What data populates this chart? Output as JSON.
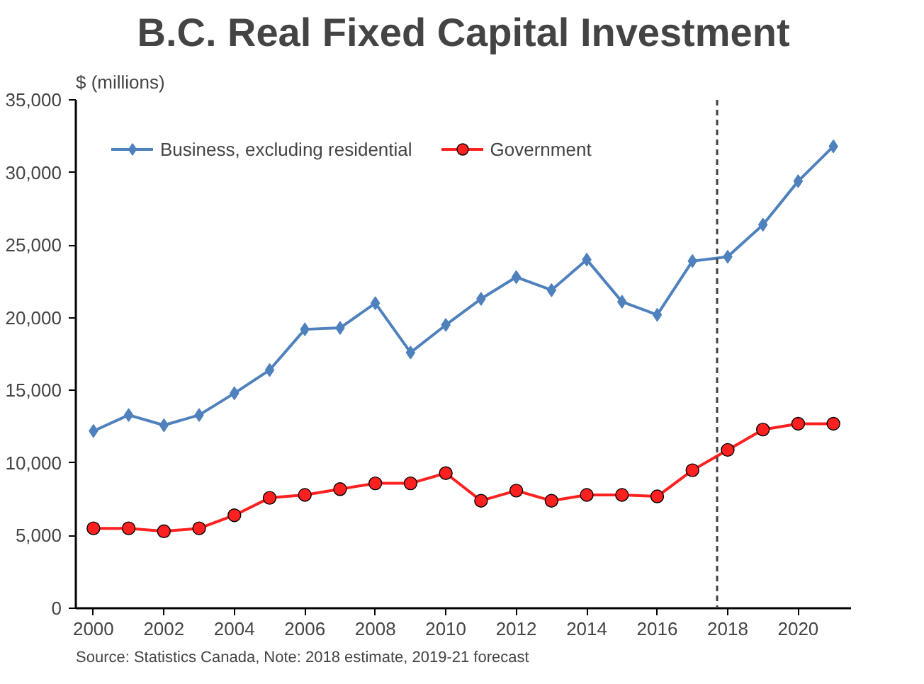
{
  "chart_data": {
    "type": "line",
    "title": "B.C. Real Fixed Capital Investment",
    "ylabel": "$ (millions)",
    "annotations": [
      "Source: Statistics Canada, Note: 2018 estimate, 2019-21 forecast"
    ],
    "x": [
      2000,
      2001,
      2002,
      2003,
      2004,
      2005,
      2006,
      2007,
      2008,
      2009,
      2010,
      2011,
      2012,
      2013,
      2014,
      2015,
      2016,
      2017,
      2018,
      2019,
      2020,
      2021
    ],
    "series": [
      {
        "name": "Business, excluding residential",
        "color": "#4f81bd",
        "marker": "diamond",
        "values": [
          12200,
          13300,
          12600,
          13300,
          14800,
          16400,
          19200,
          19300,
          21000,
          17600,
          19500,
          21300,
          22800,
          21900,
          24000,
          21100,
          20200,
          23900,
          24200,
          26400,
          29400,
          31800
        ]
      },
      {
        "name": "Government",
        "color": "#ff2020",
        "marker": "circle",
        "values": [
          5500,
          5500,
          5300,
          5500,
          6400,
          7600,
          7800,
          8200,
          8600,
          8600,
          9300,
          7400,
          8100,
          7400,
          7800,
          7800,
          7700,
          9500,
          10900,
          12300,
          12700,
          12700
        ]
      }
    ],
    "xlim": [
      1999.5,
      2021.5
    ],
    "xticks": [
      2000,
      2002,
      2004,
      2006,
      2008,
      2010,
      2012,
      2014,
      2016,
      2018,
      2020
    ],
    "ylim": [
      0,
      35000
    ],
    "yticks": [
      0,
      {
        "value": 5000,
        "label": "5,000"
      },
      {
        "value": 10000,
        "label": "10,000"
      },
      {
        "value": 15000,
        "label": "15,000"
      },
      {
        "value": 20000,
        "label": "20,000"
      },
      {
        "value": 25000,
        "label": "25,000"
      },
      {
        "value": 30000,
        "label": "30,000"
      },
      {
        "value": 35000,
        "label": "35,000"
      }
    ],
    "ref_lines": [
      {
        "axis": "x",
        "value": 2017.7,
        "color": "#404040",
        "line_style": "dashed"
      }
    ],
    "grid": false,
    "legend": "top left"
  }
}
